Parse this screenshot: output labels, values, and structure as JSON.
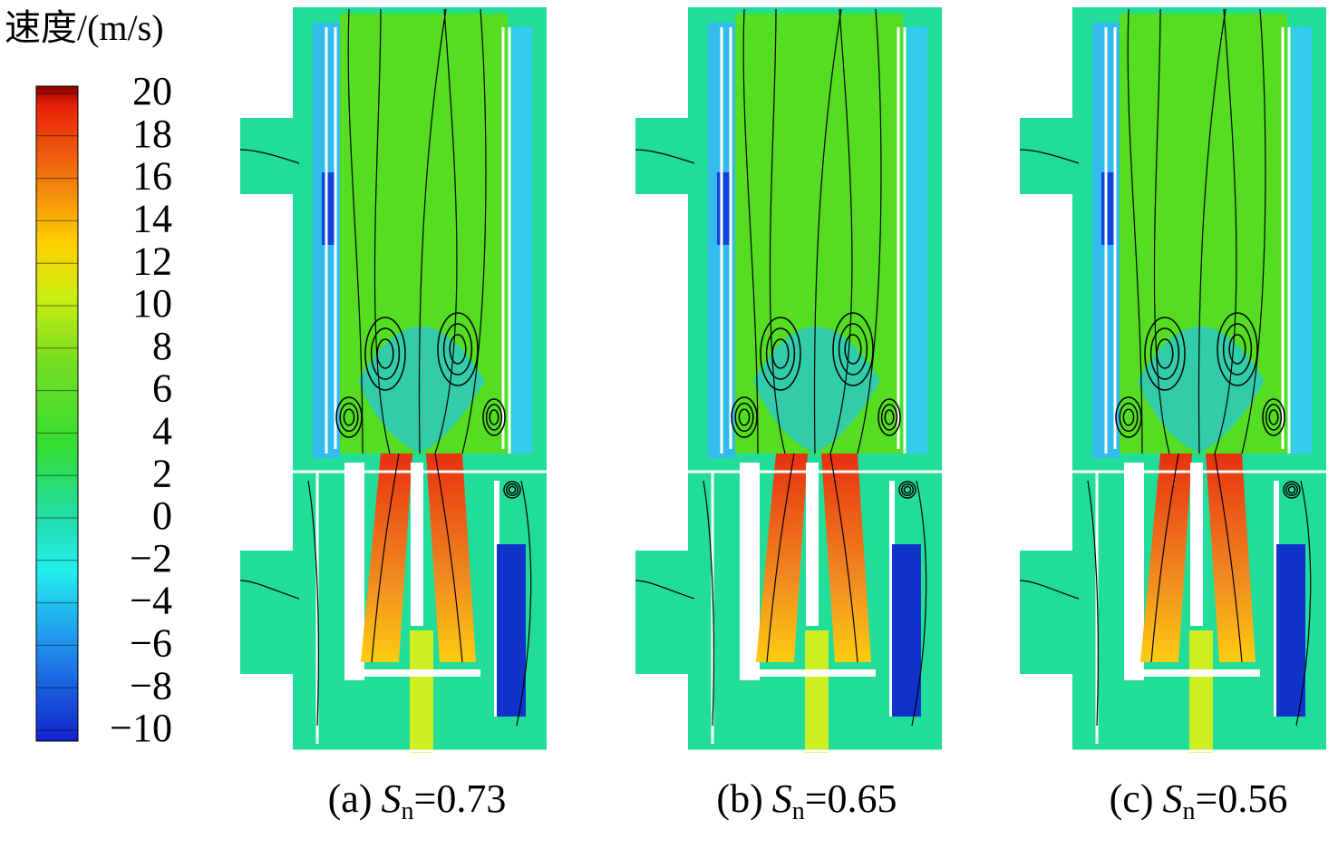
{
  "legend": {
    "title": "速度/(m/s)",
    "lim": [
      -10,
      20
    ],
    "ticks": [
      20,
      18,
      16,
      14,
      12,
      10,
      8,
      6,
      4,
      2,
      0,
      {
        "value": -2,
        "label": "−2"
      },
      {
        "value": -4,
        "label": "−4"
      },
      {
        "value": -6,
        "label": "−6"
      },
      {
        "value": -8,
        "label": "−8"
      },
      {
        "value": -10,
        "label": "−10"
      }
    ]
  },
  "panels": [
    {
      "prefix": "(a)",
      "symbol": "S",
      "subscript": "n",
      "suffix": "=0.73"
    },
    {
      "prefix": "(b)",
      "symbol": "S",
      "subscript": "n",
      "suffix": "=0.65"
    },
    {
      "prefix": "(c)",
      "symbol": "S",
      "subscript": "n",
      "suffix": "=0.56"
    }
  ]
}
